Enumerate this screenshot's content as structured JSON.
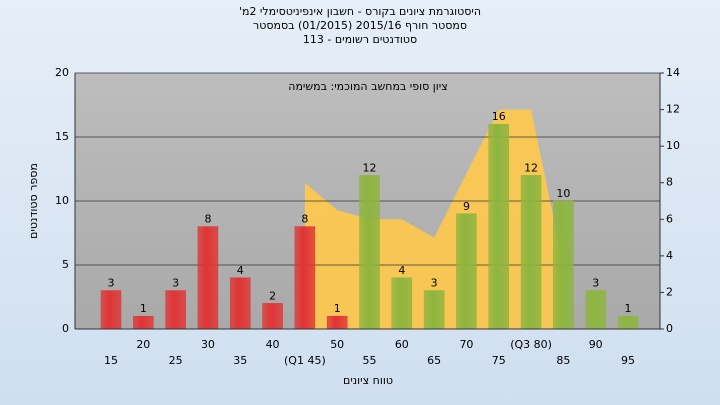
{
  "chart_data": {
    "type": "bar",
    "title": [
      "היסטוגרמת ציונים בקורס - חשבון אינפיניטסימלי 2מ'",
      "סמסטר חורף 2015/16  (01/2015)  בסמסטר",
      "סטודנטים רשומים - 113"
    ],
    "annotation": "ציון סופי במחשב המוכמי: במשימה",
    "xlabel": "טווח ציונים",
    "ylabel": "מספר סטודנטים",
    "categories": [
      "15",
      "20",
      "25",
      "30",
      "35",
      "40",
      "(Q1 45)",
      "50",
      "55",
      "60",
      "65",
      "70",
      "75",
      "(Q3 80)",
      "85",
      "90",
      "95"
    ],
    "series": [
      {
        "values": [
          3,
          1,
          3,
          8,
          4,
          2,
          8,
          1,
          12,
          4,
          3,
          9,
          16,
          12,
          10,
          3,
          1
        ],
        "colors": [
          "#e03434",
          "#e03434",
          "#e03434",
          "#e03434",
          "#e03434",
          "#e03434",
          "#e03434",
          "#e03434",
          "#8db53e",
          "#8db53e",
          "#8db53e",
          "#8db53e",
          "#8db53e",
          "#8db53e",
          "#8db53e",
          "#8db53e",
          "#8db53e"
        ]
      },
      {
        "type": "area",
        "axis": "y2",
        "color": "#ffc94a",
        "values": [
          null,
          null,
          null,
          null,
          null,
          null,
          8,
          6.5,
          6,
          6,
          5,
          8.5,
          12,
          12,
          3.5,
          null,
          null
        ]
      }
    ],
    "ylim": [
      0,
      20
    ],
    "yticks": [
      0,
      5,
      10,
      15,
      20
    ],
    "y2lim": [
      0,
      14
    ],
    "y2ticks": [
      0,
      2,
      4,
      6,
      8,
      10,
      12,
      14
    ],
    "grid": true
  }
}
